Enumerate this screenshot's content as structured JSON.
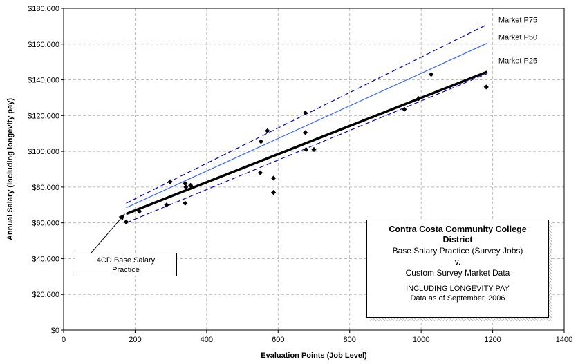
{
  "chart_data": {
    "type": "scatter",
    "xlabel": "Evaluation Points (Job Level)",
    "ylabel": "Annual Salary (including longevity pay)",
    "xlim": [
      0,
      1400
    ],
    "ylim": [
      0,
      180000
    ],
    "x_ticks": [
      0,
      200,
      400,
      600,
      800,
      1000,
      1200,
      1400
    ],
    "y_ticks": [
      0,
      20000,
      40000,
      60000,
      80000,
      100000,
      120000,
      140000,
      160000,
      180000
    ],
    "x_tick_labels": [
      "0",
      "200",
      "400",
      "600",
      "800",
      "1000",
      "1200",
      "1400"
    ],
    "y_tick_labels": [
      "$0",
      "$20,000",
      "$40,000",
      "$60,000",
      "$80,000",
      "$100,000",
      "$120,000",
      "$140,000",
      "$160,000",
      "$180,000"
    ],
    "grid": "vertical-dashed-and-horizontal-dashed",
    "points": [
      {
        "x": 175,
        "y": 60500
      },
      {
        "x": 212,
        "y": 66500
      },
      {
        "x": 288,
        "y": 70000
      },
      {
        "x": 298,
        "y": 83000
      },
      {
        "x": 340,
        "y": 82000
      },
      {
        "x": 340,
        "y": 71000
      },
      {
        "x": 342,
        "y": 80000
      },
      {
        "x": 355,
        "y": 81000
      },
      {
        "x": 552,
        "y": 105500
      },
      {
        "x": 550,
        "y": 88000
      },
      {
        "x": 570,
        "y": 111500
      },
      {
        "x": 587,
        "y": 85000
      },
      {
        "x": 587,
        "y": 77000
      },
      {
        "x": 676,
        "y": 121500
      },
      {
        "x": 676,
        "y": 110500
      },
      {
        "x": 678,
        "y": 101000
      },
      {
        "x": 700,
        "y": 101000
      },
      {
        "x": 953,
        "y": 123500
      },
      {
        "x": 993,
        "y": 129500
      },
      {
        "x": 1028,
        "y": 143000
      },
      {
        "x": 1182,
        "y": 136000
      }
    ],
    "lines": [
      {
        "name": "Market P75",
        "style": "dashed",
        "color": "#0000cc",
        "x": [
          175,
          1185
        ],
        "y": [
          71000,
          171000
        ]
      },
      {
        "name": "Market P50",
        "style": "solid-thin",
        "color": "#3366ff",
        "x": [
          175,
          1185
        ],
        "y": [
          68500,
          160500
        ]
      },
      {
        "name": "",
        "style": "solid-thick",
        "color": "#000000",
        "x": [
          175,
          1185
        ],
        "y": [
          65000,
          144500
        ]
      },
      {
        "name": "Market P25",
        "style": "dashed",
        "color": "#0000cc",
        "x": [
          175,
          1185
        ],
        "y": [
          60000,
          143500
        ]
      }
    ],
    "callout": {
      "text_line1": "4CD Base Salary",
      "text_line2": "Practice",
      "target_x": 175,
      "target_y": 65000
    },
    "info_box": {
      "title": "Contra Costa Community College District",
      "line1": "Base Salary Practice (Survey Jobs)",
      "line2": "v.",
      "line3": "Custom Survey Market Data",
      "line4": "INCLUDING LONGEVITY PAY",
      "line5": "Data as of September, 2006"
    }
  }
}
